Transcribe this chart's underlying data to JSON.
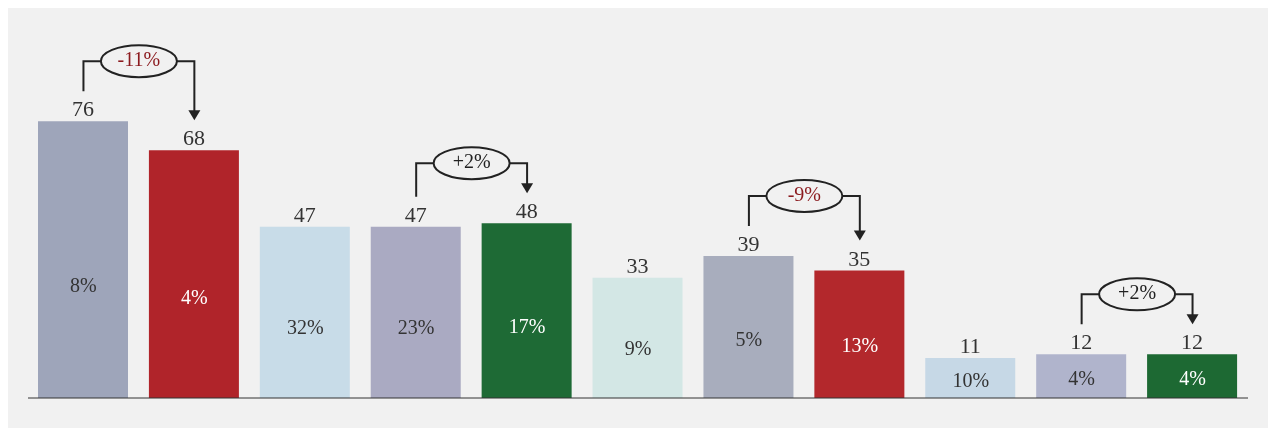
{
  "chart_data": {
    "type": "bar",
    "categories": [
      null,
      null,
      null,
      null,
      null,
      null,
      null,
      null,
      null,
      null,
      null
    ],
    "values": [
      76,
      68,
      47,
      47,
      48,
      33,
      39,
      35,
      11,
      12,
      12
    ],
    "colors": [
      "#9ea5ba",
      "#b0242a",
      "#c8dce8",
      "#aaaac2",
      "#1e6a35",
      "#d3e7e5",
      "#a8adbd",
      "#b3282c",
      "#c6d8e6",
      "#b0b4cc",
      "#1d6933"
    ],
    "data_labels": true,
    "annotations": [
      "8%",
      "4%",
      "32%",
      "23%",
      "17%",
      "9%",
      "5%",
      "13%",
      "10%",
      "4%",
      "4%",
      "-11%",
      "+2%",
      "-9%",
      "+2%"
    ]
  }
}
